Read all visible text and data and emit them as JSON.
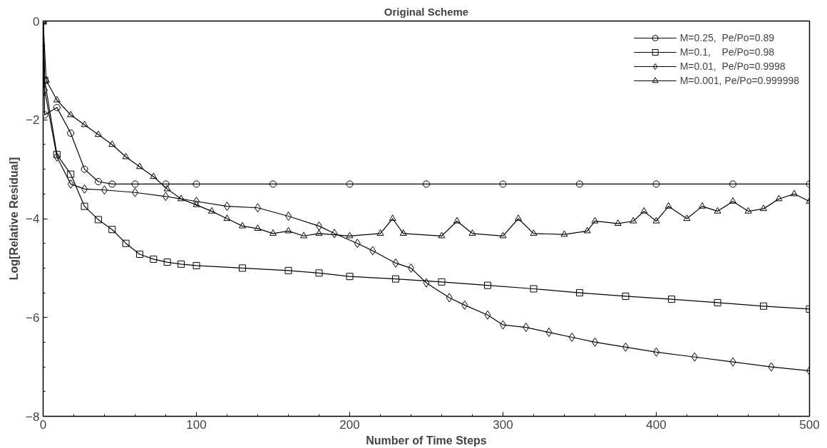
{
  "chart_data": {
    "type": "line",
    "title": "Original Scheme",
    "xlabel": "Number of Time Steps",
    "ylabel": "Log[Relative Residual]",
    "xlim": [
      0,
      500
    ],
    "ylim": [
      -8,
      0
    ],
    "xticks": [
      0,
      100,
      200,
      300,
      400,
      500
    ],
    "yticks": [
      -8,
      -6,
      -4,
      -2,
      0
    ],
    "grid": false,
    "legend": "top right",
    "line_style": "solid",
    "series": [
      {
        "name": "M=0.25,  Pe/Po=0.89",
        "marker": "circle",
        "color": "#000000",
        "x": [
          0,
          1,
          9,
          18,
          27,
          36,
          45,
          60,
          80,
          100,
          150,
          200,
          250,
          300,
          350,
          400,
          450,
          500
        ],
        "values": [
          0,
          -1.9,
          -1.75,
          -2.27,
          -3.0,
          -3.25,
          -3.3,
          -3.3,
          -3.3,
          -3.3,
          -3.3,
          -3.3,
          -3.3,
          -3.3,
          -3.3,
          -3.3,
          -3.3,
          -3.3
        ]
      },
      {
        "name": "M=0.1,    Pe/Po=0.98",
        "marker": "square",
        "color": "#000000",
        "x": [
          0,
          1,
          9,
          18,
          27,
          36,
          45,
          54,
          63,
          72,
          81,
          90,
          100,
          130,
          160,
          180,
          200,
          230,
          260,
          290,
          320,
          350,
          380,
          410,
          440,
          470,
          500
        ],
        "values": [
          0,
          -1.2,
          -2.7,
          -3.1,
          -3.75,
          -4.02,
          -4.22,
          -4.5,
          -4.72,
          -4.82,
          -4.88,
          -4.92,
          -4.95,
          -5.0,
          -5.05,
          -5.1,
          -5.17,
          -5.22,
          -5.28,
          -5.35,
          -5.42,
          -5.5,
          -5.57,
          -5.63,
          -5.7,
          -5.77,
          -5.83
        ]
      },
      {
        "name": "M=0.01,  Pe/Po=0.9998",
        "marker": "diamond",
        "color": "#000000",
        "x": [
          0,
          1,
          9,
          18,
          27,
          40,
          60,
          80,
          100,
          120,
          140,
          160,
          180,
          190,
          205,
          215,
          230,
          240,
          250,
          265,
          275,
          290,
          300,
          315,
          330,
          345,
          360,
          380,
          400,
          425,
          450,
          475,
          500
        ],
        "values": [
          0,
          -1.4,
          -2.75,
          -3.3,
          -3.4,
          -3.42,
          -3.47,
          -3.55,
          -3.65,
          -3.75,
          -3.78,
          -3.95,
          -4.15,
          -4.3,
          -4.5,
          -4.65,
          -4.9,
          -5.0,
          -5.3,
          -5.6,
          -5.75,
          -5.95,
          -6.15,
          -6.2,
          -6.3,
          -6.4,
          -6.5,
          -6.6,
          -6.7,
          -6.8,
          -6.9,
          -7.0,
          -7.08
        ]
      },
      {
        "name": "M=0.001, Pe/Po=0.999998",
        "marker": "triangle",
        "color": "#000000",
        "x": [
          0,
          2,
          9,
          18,
          27,
          36,
          45,
          54,
          63,
          72,
          81,
          90,
          100,
          110,
          120,
          130,
          140,
          150,
          160,
          170,
          180,
          200,
          220,
          228,
          235,
          260,
          270,
          280,
          300,
          310,
          320,
          340,
          355,
          360,
          375,
          385,
          392,
          400,
          408,
          420,
          430,
          440,
          450,
          460,
          470,
          480,
          490,
          500
        ],
        "values": [
          0,
          -1.2,
          -1.6,
          -1.9,
          -2.1,
          -2.3,
          -2.5,
          -2.75,
          -2.95,
          -3.15,
          -3.4,
          -3.6,
          -3.72,
          -3.85,
          -4.0,
          -4.15,
          -4.2,
          -4.3,
          -4.25,
          -4.35,
          -4.3,
          -4.35,
          -4.3,
          -4.0,
          -4.3,
          -4.35,
          -4.05,
          -4.3,
          -4.35,
          -4.0,
          -4.3,
          -4.32,
          -4.25,
          -4.05,
          -4.1,
          -4.05,
          -3.85,
          -4.05,
          -3.75,
          -4.0,
          -3.75,
          -3.85,
          -3.65,
          -3.85,
          -3.8,
          -3.6,
          -3.5,
          -3.65
        ]
      }
    ]
  }
}
